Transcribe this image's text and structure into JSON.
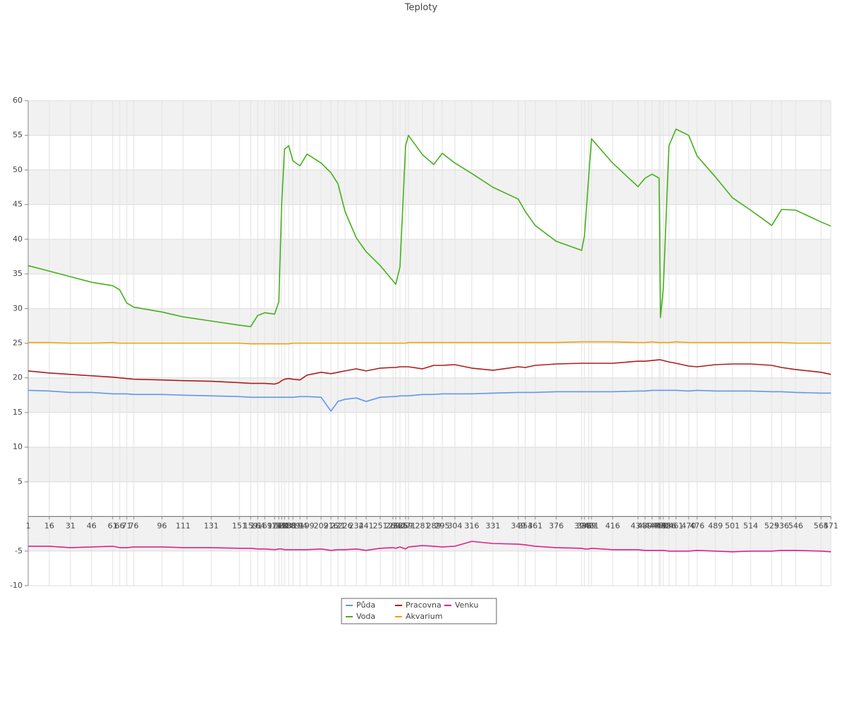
{
  "chart_data": {
    "type": "line",
    "title": "Teploty",
    "x": [
      1,
      16,
      31,
      46,
      61,
      66,
      71,
      76,
      96,
      111,
      131,
      151,
      159,
      164,
      169,
      176,
      179,
      181,
      183,
      186,
      189,
      194,
      199,
      209,
      216,
      221,
      226,
      234,
      241,
      251,
      260,
      262,
      265,
      269,
      271,
      281,
      289,
      295,
      304,
      316,
      331,
      349,
      354,
      361,
      376,
      394,
      396,
      399,
      401,
      416,
      434,
      439,
      444,
      449,
      450,
      452,
      456,
      461,
      470,
      476,
      489,
      501,
      514,
      529,
      536,
      546,
      564,
      571
    ],
    "xlim": [
      1,
      571
    ],
    "ylim": [
      -10,
      60
    ],
    "yticks": [
      -10,
      -5,
      5,
      10,
      15,
      20,
      25,
      30,
      35,
      40,
      45,
      50,
      55,
      60
    ],
    "grid": true,
    "legend": "bottom",
    "series": [
      {
        "name": "Půda",
        "color": "#6495ed",
        "values": [
          18.2,
          18.1,
          17.9,
          17.9,
          17.7,
          17.7,
          17.7,
          17.6,
          17.6,
          17.5,
          17.4,
          17.3,
          17.2,
          17.2,
          17.2,
          17.2,
          17.2,
          17.2,
          17.2,
          17.2,
          17.2,
          17.3,
          17.3,
          17.2,
          15.2,
          16.6,
          16.9,
          17.1,
          16.6,
          17.2,
          17.3,
          17.3,
          17.4,
          17.4,
          17.4,
          17.6,
          17.6,
          17.7,
          17.7,
          17.7,
          17.8,
          17.9,
          17.9,
          17.9,
          18,
          18,
          18,
          18,
          18,
          18,
          18.1,
          18.1,
          18.2,
          18.2,
          18.2,
          18.2,
          18.2,
          18.2,
          18.1,
          18.2,
          18.1,
          18.1,
          18.1,
          18,
          18,
          17.9,
          17.8,
          17.8
        ]
      },
      {
        "name": "Voda",
        "color": "#44b01a",
        "values": [
          36.2,
          35.4,
          34.6,
          33.8,
          33.3,
          32.7,
          30.8,
          30.2,
          29.5,
          28.8,
          28.2,
          27.6,
          27.4,
          29,
          29.4,
          29.2,
          31,
          45,
          53,
          53.5,
          51.3,
          50.6,
          52.3,
          51,
          49.6,
          48,
          44,
          40.2,
          38.2,
          36.2,
          34,
          33.5,
          36,
          53.5,
          55,
          52.2,
          50.8,
          52.4,
          51,
          49.5,
          47.5,
          45.8,
          44,
          42,
          39.7,
          38.4,
          40.5,
          49,
          54.5,
          51,
          47.6,
          48.8,
          49.4,
          48.8,
          28.7,
          33,
          53.5,
          55.9,
          55,
          52,
          49,
          46,
          44.2,
          42,
          44.3,
          44.2,
          42.5,
          41.9
        ]
      },
      {
        "name": "Pracovna",
        "color": "#b01c1c",
        "values": [
          21,
          20.7,
          20.5,
          20.3,
          20.1,
          20,
          19.9,
          19.8,
          19.7,
          19.6,
          19.5,
          19.3,
          19.2,
          19.2,
          19.2,
          19.1,
          19.3,
          19.6,
          19.8,
          19.9,
          19.8,
          19.7,
          20.4,
          20.8,
          20.6,
          20.8,
          21,
          21.3,
          21,
          21.4,
          21.5,
          21.5,
          21.6,
          21.6,
          21.6,
          21.3,
          21.8,
          21.8,
          21.9,
          21.4,
          21.1,
          21.6,
          21.5,
          21.8,
          22,
          22.1,
          22.1,
          22.1,
          22.1,
          22.1,
          22.4,
          22.4,
          22.5,
          22.6,
          22.6,
          22.5,
          22.3,
          22.1,
          21.7,
          21.6,
          21.9,
          22,
          22,
          21.8,
          21.5,
          21.2,
          20.8,
          20.5
        ]
      },
      {
        "name": "Akvarium",
        "color": "#f5a000",
        "values": [
          25.1,
          25.1,
          25.0,
          25.0,
          25.1,
          25.0,
          25.0,
          25.0,
          25.0,
          25.0,
          25.0,
          25.0,
          24.9,
          24.9,
          24.9,
          24.9,
          24.9,
          24.9,
          24.9,
          24.9,
          25.0,
          25.0,
          25.0,
          25.0,
          25.0,
          25.0,
          25.0,
          25.0,
          25.0,
          25.0,
          25.0,
          25.0,
          25.0,
          25.0,
          25.1,
          25.1,
          25.1,
          25.1,
          25.1,
          25.1,
          25.1,
          25.1,
          25.1,
          25.1,
          25.1,
          25.2,
          25.2,
          25.2,
          25.2,
          25.2,
          25.1,
          25.1,
          25.2,
          25.1,
          25.1,
          25.1,
          25.1,
          25.2,
          25.1,
          25.1,
          25.1,
          25.1,
          25.1,
          25.1,
          25.1,
          25.0,
          25.0,
          25.0
        ]
      },
      {
        "name": "Venku",
        "color": "#e0208a",
        "values": [
          -4.3,
          -4.3,
          -4.5,
          -4.4,
          -4.3,
          -4.5,
          -4.5,
          -4.4,
          -4.4,
          -4.5,
          -4.5,
          -4.6,
          -4.6,
          -4.7,
          -4.7,
          -4.8,
          -4.7,
          -4.7,
          -4.8,
          -4.8,
          -4.8,
          -4.8,
          -4.8,
          -4.7,
          -4.9,
          -4.8,
          -4.8,
          -4.7,
          -4.9,
          -4.6,
          -4.5,
          -4.6,
          -4.4,
          -4.7,
          -4.4,
          -4.2,
          -4.3,
          -4.4,
          -4.3,
          -3.6,
          -3.9,
          -4.0,
          -4.1,
          -4.3,
          -4.5,
          -4.6,
          -4.7,
          -4.7,
          -4.6,
          -4.8,
          -4.8,
          -4.9,
          -4.9,
          -4.9,
          -4.9,
          -4.9,
          -5.0,
          -5.0,
          -5.0,
          -4.9,
          -5.0,
          -5.1,
          -5.0,
          -5.0,
          -4.9,
          -4.9,
          -5.0,
          -5.1
        ]
      }
    ]
  }
}
